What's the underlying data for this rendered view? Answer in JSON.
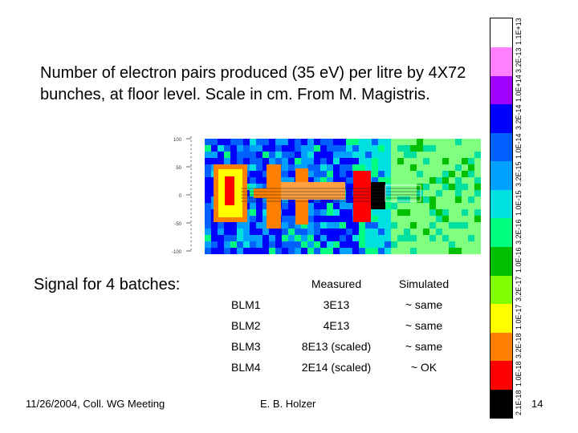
{
  "title": "Number of electron pairs produced (35 eV) per litre by 4X72 bunches, at floor level. Scale in cm. From M. Magistris.",
  "signal_heading": "Signal for 4 batches:",
  "table": {
    "headers": [
      "",
      "Measured",
      "Simulated"
    ],
    "rows": [
      [
        "BLM1",
        "3E13",
        "~ same"
      ],
      [
        "BLM2",
        "4E13",
        "~ same"
      ],
      [
        "BLM3",
        "8E13 (scaled)",
        "~ same"
      ],
      [
        "BLM4",
        "2E14 (scaled)",
        "~ OK"
      ]
    ]
  },
  "plot": {
    "y_ticks": [
      "100",
      "50",
      "0",
      "-50",
      "-100"
    ]
  },
  "color_scale": {
    "labels": [
      "2.1E-18",
      "1.0E-18",
      "3.2E-18",
      "1.0E-17",
      "3.2E-17",
      "1.0E-16",
      "3.2E-16",
      "1.0E-15",
      "3.2E-15",
      "1.0E-14",
      "3.2E-14",
      "1.0E+14",
      "3.2E-13",
      "1.1E+13"
    ],
    "colors": [
      "#000000",
      "#ff0000",
      "#ff8000",
      "#ffff00",
      "#80ff00",
      "#00c000",
      "#00ff80",
      "#00e0e0",
      "#00a0ff",
      "#0060ff",
      "#0000ff",
      "#a000ff",
      "#ff80ff",
      "#ffffff"
    ]
  },
  "footer": {
    "date": "11/26/2004, Coll. WG Meeting",
    "author": "E. B. Holzer",
    "page": "14"
  }
}
